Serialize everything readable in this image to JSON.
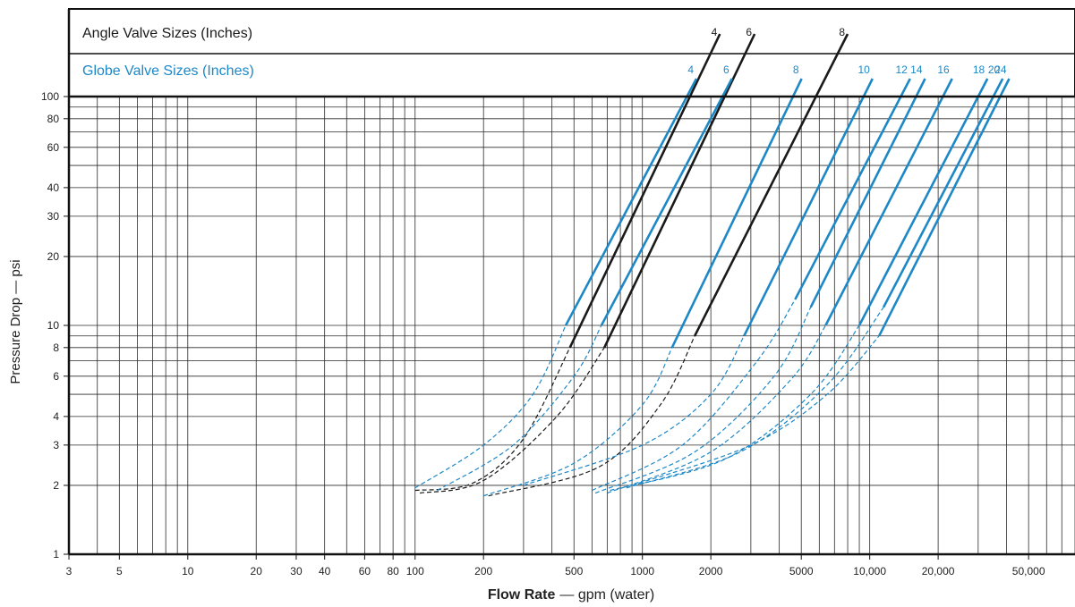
{
  "chart_data": {
    "type": "line",
    "xscale": "log",
    "yscale": "log",
    "xlim": [
      3,
      80000
    ],
    "ylim": [
      1,
      100
    ],
    "xlabel_bold": "Flow Rate",
    "xlabel_rest": "— gpm (water)",
    "ylabel": "Pressure Drop — psi",
    "grid": true,
    "xticks": [
      3,
      5,
      10,
      20,
      30,
      40,
      60,
      80,
      100,
      200,
      500,
      1000,
      2000,
      5000,
      10000,
      20000,
      50000
    ],
    "xtick_labels": [
      "3",
      "5",
      "10",
      "20",
      "30",
      "40",
      "60",
      "80",
      "100",
      "200",
      "500",
      "1000",
      "2000",
      "5000",
      "10,000",
      "20,000",
      "50,000"
    ],
    "yticks": [
      1,
      2,
      3,
      4,
      6,
      8,
      10,
      20,
      30,
      40,
      60,
      80,
      100
    ],
    "ytick_labels": [
      "1",
      "2",
      "3",
      "4",
      "6",
      "8",
      "10",
      "20",
      "30",
      "40",
      "60",
      "80",
      "100"
    ],
    "header": {
      "angle_title": "Angle Valve Sizes (Inches)",
      "globe_title": "Globe Valve Sizes (Inches)"
    },
    "colors": {
      "angle": "#1a1a1a",
      "globe": "#1e88c7"
    },
    "series": [
      {
        "name": "4",
        "group": "angle",
        "solid": [
          [
            480,
            8
          ],
          [
            1620,
            100
          ]
        ],
        "dashed": [
          [
            100,
            1.9
          ],
          [
            180,
            2.05
          ],
          [
            300,
            3.2
          ],
          [
            480,
            8
          ]
        ]
      },
      {
        "name": "6",
        "group": "angle",
        "solid": [
          [
            680,
            8
          ],
          [
            2300,
            100
          ]
        ],
        "dashed": [
          [
            105,
            1.85
          ],
          [
            200,
            2.1
          ],
          [
            420,
            4.0
          ],
          [
            680,
            8
          ]
        ]
      },
      {
        "name": "8",
        "group": "angle",
        "solid": [
          [
            1700,
            9
          ],
          [
            5800,
            100
          ]
        ],
        "dashed": [
          [
            210,
            1.8
          ],
          [
            640,
            2.4
          ],
          [
            1200,
            4.5
          ],
          [
            1700,
            9
          ]
        ]
      },
      {
        "name": "4",
        "group": "globe",
        "solid": [
          [
            460,
            10
          ],
          [
            1570,
            100
          ]
        ],
        "dashed": [
          [
            100,
            1.95
          ],
          [
            200,
            3.0
          ],
          [
            330,
            5.0
          ],
          [
            460,
            10
          ]
        ]
      },
      {
        "name": "6",
        "group": "globe",
        "solid": [
          [
            660,
            10
          ],
          [
            2250,
            100
          ]
        ],
        "dashed": [
          [
            125,
            1.9
          ],
          [
            270,
            3.0
          ],
          [
            500,
            6.0
          ],
          [
            660,
            10
          ]
        ]
      },
      {
        "name": "8",
        "group": "globe",
        "solid": [
          [
            1350,
            8
          ],
          [
            4600,
            100
          ]
        ],
        "dashed": [
          [
            200,
            1.8
          ],
          [
            500,
            2.5
          ],
          [
            1000,
            4.5
          ],
          [
            1350,
            8
          ]
        ]
      },
      {
        "name": "10",
        "group": "globe",
        "solid": [
          [
            2800,
            9
          ],
          [
            9400,
            100
          ]
        ],
        "dashed": [
          [
            300,
            2.0
          ],
          [
            1000,
            3.0
          ],
          [
            2000,
            5.0
          ],
          [
            2800,
            9
          ]
        ]
      },
      {
        "name": "12",
        "group": "globe",
        "solid": [
          [
            4700,
            13
          ],
          [
            13700,
            100
          ]
        ],
        "dashed": [
          [
            600,
            1.9
          ],
          [
            1500,
            3.0
          ],
          [
            3200,
            7.0
          ],
          [
            4700,
            13
          ]
        ]
      },
      {
        "name": "14",
        "group": "globe",
        "solid": [
          [
            5500,
            12
          ],
          [
            16000,
            100
          ]
        ],
        "dashed": [
          [
            620,
            1.85
          ],
          [
            1700,
            2.8
          ],
          [
            3800,
            6.0
          ],
          [
            5500,
            12
          ]
        ]
      },
      {
        "name": "16",
        "group": "globe",
        "solid": [
          [
            6400,
            10
          ],
          [
            21000,
            100
          ]
        ],
        "dashed": [
          [
            700,
            1.85
          ],
          [
            2000,
            2.8
          ],
          [
            4500,
            5.8
          ],
          [
            6400,
            10
          ]
        ]
      },
      {
        "name": "18",
        "group": "globe",
        "solid": [
          [
            9000,
            10
          ],
          [
            30000,
            100
          ]
        ],
        "dashed": [
          [
            720,
            1.9
          ],
          [
            2300,
            2.6
          ],
          [
            5500,
            5.0
          ],
          [
            9000,
            10
          ]
        ]
      },
      {
        "name": "20",
        "group": "globe",
        "solid": [
          [
            11500,
            12
          ],
          [
            35000,
            100
          ]
        ],
        "dashed": [
          [
            850,
            1.95
          ],
          [
            2700,
            2.8
          ],
          [
            6500,
            5.5
          ],
          [
            11500,
            12
          ]
        ]
      },
      {
        "name": "24",
        "group": "globe",
        "solid": [
          [
            11000,
            9
          ],
          [
            37500,
            100
          ]
        ],
        "dashed": [
          [
            900,
            2.0
          ],
          [
            3000,
            3.0
          ],
          [
            6500,
            5.0
          ],
          [
            11000,
            9
          ]
        ]
      }
    ]
  }
}
